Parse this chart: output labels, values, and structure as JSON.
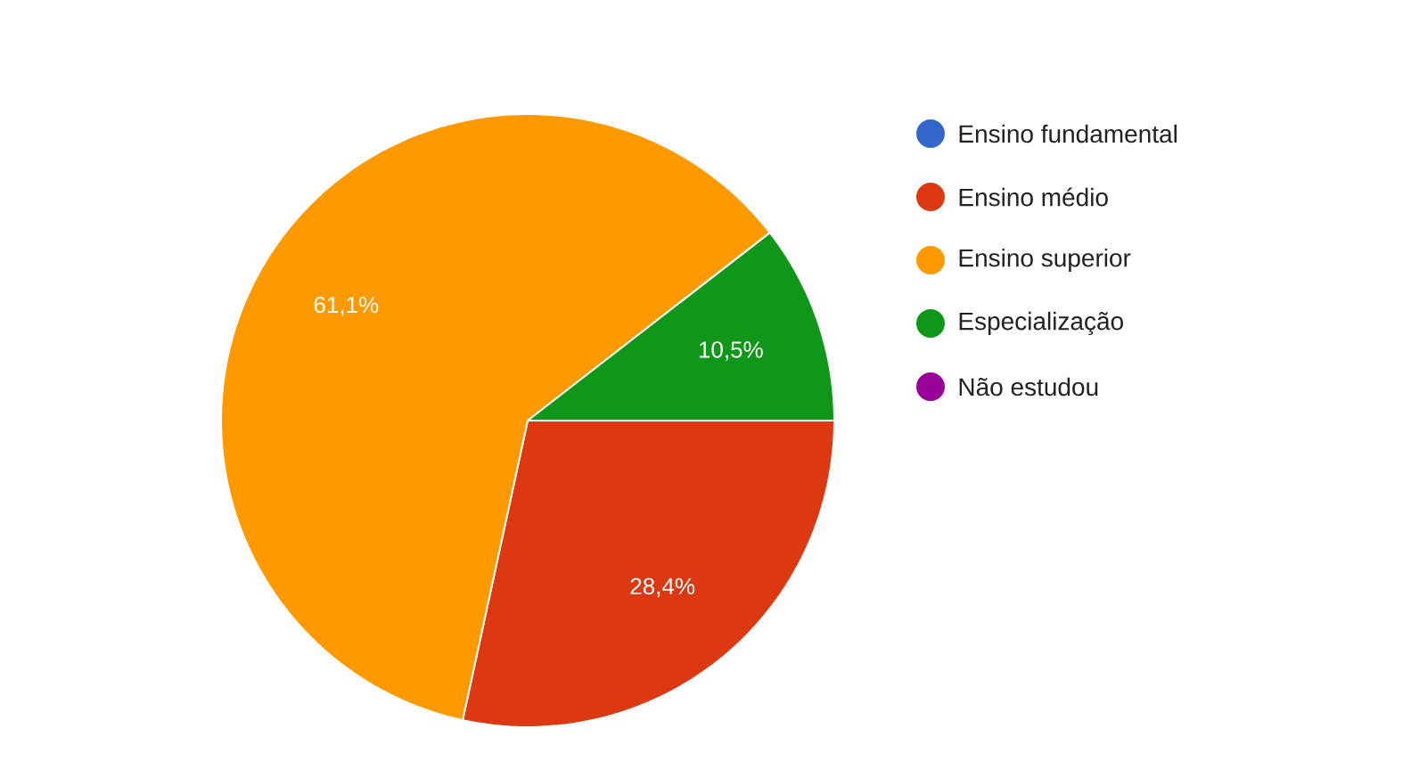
{
  "chart_data": {
    "type": "pie",
    "categories": [
      "Ensino fundamental",
      "Ensino médio",
      "Ensino superior",
      "Especialização",
      "Não estudou"
    ],
    "values": [
      0,
      28.4,
      61.1,
      10.5,
      0
    ],
    "colors": [
      "#3366cc",
      "#dc3912",
      "#ff9900",
      "#109618",
      "#990099"
    ],
    "value_labels": [
      null,
      "28,4%",
      "61,1%",
      "10,5%",
      null
    ],
    "legend": "right"
  }
}
